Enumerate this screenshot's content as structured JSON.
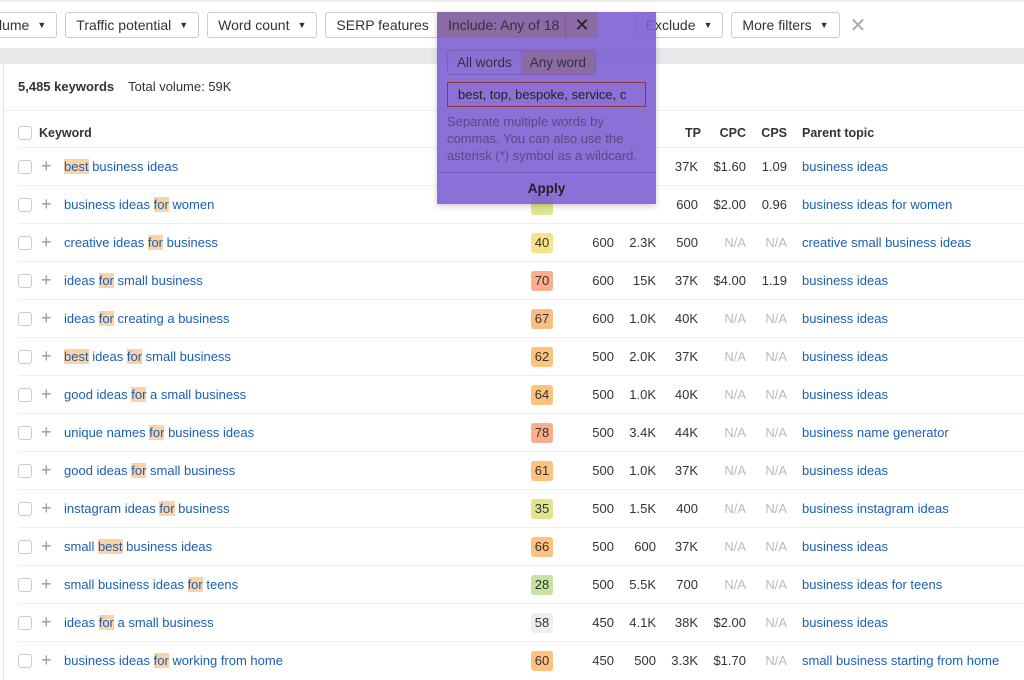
{
  "filters": [
    {
      "label": "lume"
    },
    {
      "label": "Traffic potential"
    },
    {
      "label": "Word count"
    },
    {
      "label": "SERP features"
    }
  ],
  "include": {
    "label": "Include: Any of 18",
    "modes": [
      "All words",
      "Any word"
    ],
    "active_mode": "Any word",
    "value": "best, top, bespoke, service, c",
    "help": "Separate multiple words by commas. You can also use the asterisk (*) symbol as a wildcard.",
    "apply": "Apply"
  },
  "exclude_label": "Exclude",
  "more_filters": "More filters",
  "summary": {
    "count": "5,485 keywords",
    "volume": "Total volume: 59K"
  },
  "headers": {
    "keyword": "Keyword",
    "tp": "TP",
    "cpc": "CPC",
    "cps": "CPS",
    "parent": "Parent topic"
  },
  "kd_colors": {
    "28": "#c7e3a0",
    "35": "#e1e68e",
    "40": "#f7e38a",
    "58": "#eeeeee",
    "60": "#fdc27e",
    "61": "#fdc27e",
    "62": "#fdc27e",
    "64": "#fdc27e",
    "66": "#fdc27e",
    "67": "#fdbd82",
    "70": "#fcae8c",
    "78": "#fcae8c",
    "hidden": "#e1e68e"
  },
  "rows": [
    {
      "kw": [
        [
          "best",
          true
        ],
        [
          " business ideas",
          false
        ]
      ],
      "kd": "",
      "vol": "",
      "gv": "",
      "tp": "37K",
      "cpc": "$1.60",
      "cps": "1.09",
      "parent": "business ideas"
    },
    {
      "kw": [
        [
          "business ideas ",
          false
        ],
        [
          "for",
          true
        ],
        [
          " women",
          false
        ]
      ],
      "kd": "",
      "vol": "",
      "gv": "",
      "tp": "600",
      "cpc": "$2.00",
      "cps": "0.96",
      "parent": "business ideas for women",
      "kd_hidden": true
    },
    {
      "kw": [
        [
          "creative ideas ",
          false
        ],
        [
          "for",
          true
        ],
        [
          " business",
          false
        ]
      ],
      "kd": "40",
      "vol": "600",
      "gv": "2.3K",
      "tp": "500",
      "cpc": "N/A",
      "cps": "N/A",
      "parent": "creative small business ideas"
    },
    {
      "kw": [
        [
          "ideas ",
          false
        ],
        [
          "for",
          true
        ],
        [
          " small business",
          false
        ]
      ],
      "kd": "70",
      "vol": "600",
      "gv": "15K",
      "tp": "37K",
      "cpc": "$4.00",
      "cps": "1.19",
      "parent": "business ideas"
    },
    {
      "kw": [
        [
          "ideas ",
          false
        ],
        [
          "for",
          true
        ],
        [
          " creating a business",
          false
        ]
      ],
      "kd": "67",
      "vol": "600",
      "gv": "1.0K",
      "tp": "40K",
      "cpc": "N/A",
      "cps": "N/A",
      "parent": "business ideas"
    },
    {
      "kw": [
        [
          "best",
          true
        ],
        [
          " ideas ",
          false
        ],
        [
          "for",
          true
        ],
        [
          " small business",
          false
        ]
      ],
      "kd": "62",
      "vol": "500",
      "gv": "2.0K",
      "tp": "37K",
      "cpc": "N/A",
      "cps": "N/A",
      "parent": "business ideas"
    },
    {
      "kw": [
        [
          "good ideas ",
          false
        ],
        [
          "for",
          true
        ],
        [
          " a small business",
          false
        ]
      ],
      "kd": "64",
      "vol": "500",
      "gv": "1.0K",
      "tp": "40K",
      "cpc": "N/A",
      "cps": "N/A",
      "parent": "business ideas"
    },
    {
      "kw": [
        [
          "unique names ",
          false
        ],
        [
          "for",
          true
        ],
        [
          " business ideas",
          false
        ]
      ],
      "kd": "78",
      "vol": "500",
      "gv": "3.4K",
      "tp": "44K",
      "cpc": "N/A",
      "cps": "N/A",
      "parent": "business name generator"
    },
    {
      "kw": [
        [
          "good ideas ",
          false
        ],
        [
          "for",
          true
        ],
        [
          " small business",
          false
        ]
      ],
      "kd": "61",
      "vol": "500",
      "gv": "1.0K",
      "tp": "37K",
      "cpc": "N/A",
      "cps": "N/A",
      "parent": "business ideas"
    },
    {
      "kw": [
        [
          "instagram ideas ",
          false
        ],
        [
          "for",
          true
        ],
        [
          " business",
          false
        ]
      ],
      "kd": "35",
      "vol": "500",
      "gv": "1.5K",
      "tp": "400",
      "cpc": "N/A",
      "cps": "N/A",
      "parent": "business instagram ideas"
    },
    {
      "kw": [
        [
          "small ",
          false
        ],
        [
          "best",
          true
        ],
        [
          " business ideas",
          false
        ]
      ],
      "kd": "66",
      "vol": "500",
      "gv": "600",
      "tp": "37K",
      "cpc": "N/A",
      "cps": "N/A",
      "parent": "business ideas"
    },
    {
      "kw": [
        [
          "small business ideas ",
          false
        ],
        [
          "for",
          true
        ],
        [
          " teens",
          false
        ]
      ],
      "kd": "28",
      "vol": "500",
      "gv": "5.5K",
      "tp": "700",
      "cpc": "N/A",
      "cps": "N/A",
      "parent": "business ideas for teens"
    },
    {
      "kw": [
        [
          "ideas ",
          false
        ],
        [
          "for",
          true
        ],
        [
          " a small business",
          false
        ]
      ],
      "kd": "58",
      "vol": "450",
      "gv": "4.1K",
      "tp": "38K",
      "cpc": "$2.00",
      "cps": "N/A",
      "parent": "business ideas"
    },
    {
      "kw": [
        [
          "business ideas ",
          false
        ],
        [
          "for",
          true
        ],
        [
          " working from home",
          false
        ]
      ],
      "kd": "60",
      "vol": "450",
      "gv": "500",
      "tp": "3.3K",
      "cpc": "$1.70",
      "cps": "N/A",
      "parent": "small business starting from home"
    }
  ]
}
